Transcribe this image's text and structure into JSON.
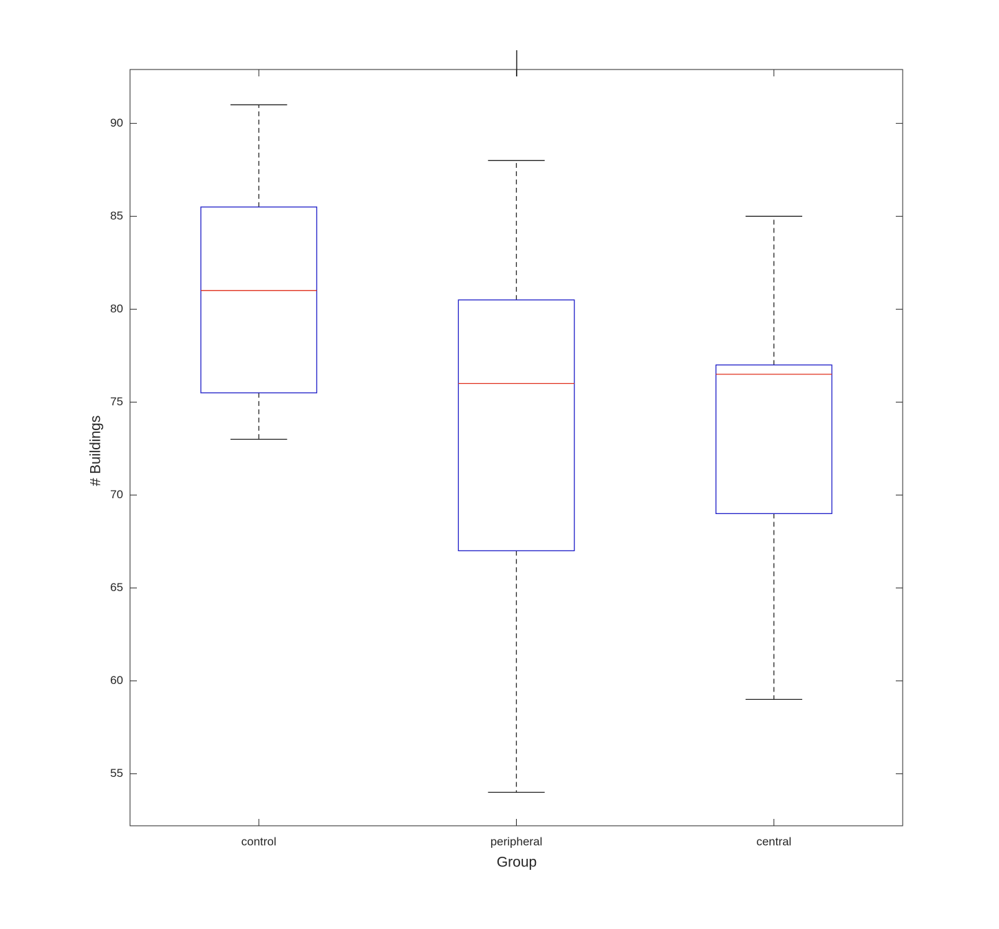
{
  "chart_data": {
    "type": "box",
    "xlabel": "Group",
    "ylabel": "# Buildings",
    "categories": [
      "control",
      "peripheral",
      "central"
    ],
    "min": [
      73,
      54,
      59
    ],
    "q1": [
      75.5,
      67,
      69
    ],
    "median": [
      81,
      76,
      76.5
    ],
    "q3": [
      85.5,
      80.5,
      77
    ],
    "max": [
      91,
      88,
      85
    ],
    "box_color": "#1f1fc8",
    "median_color": "#e0301e",
    "whisker_color": "#222222",
    "ylim": [
      52.2,
      92.9
    ],
    "yticks": [
      55,
      60,
      65,
      70,
      75,
      80,
      85,
      90
    ],
    "grid": false
  }
}
